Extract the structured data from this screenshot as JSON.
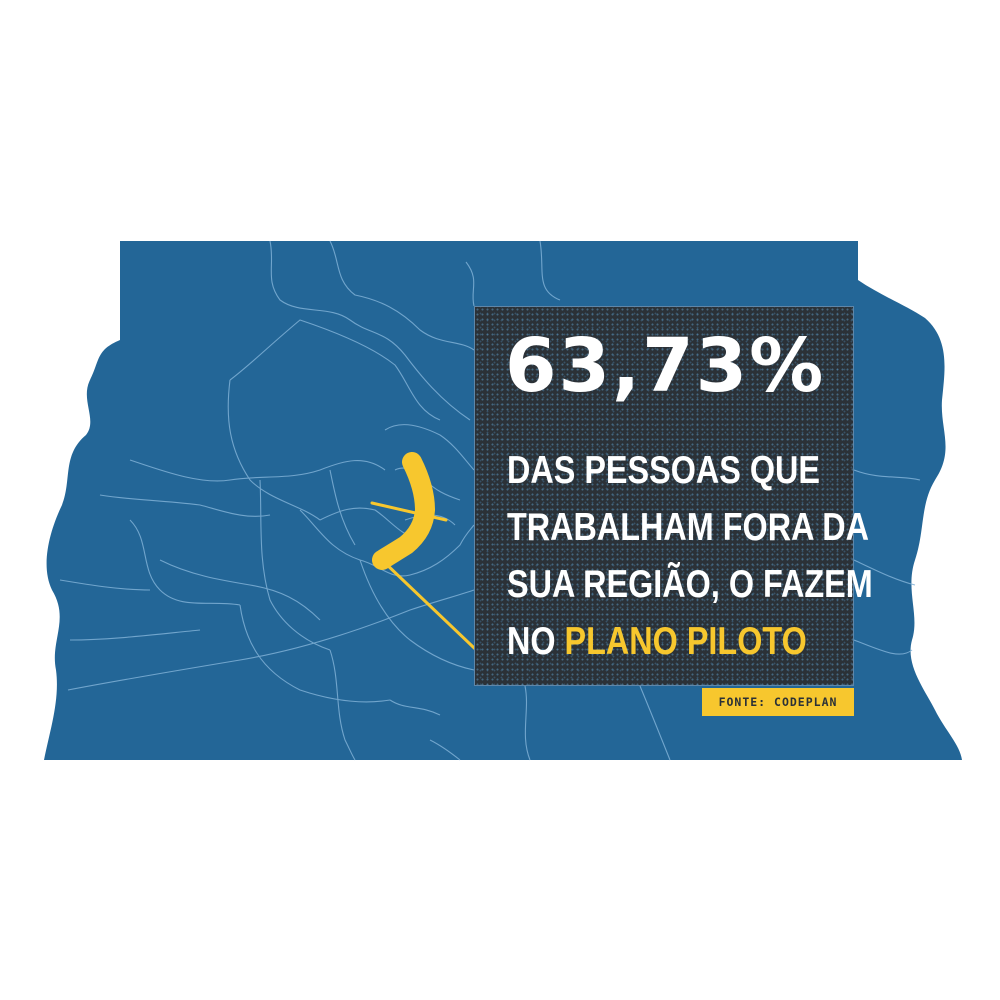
{
  "headline": {
    "value": "63,73%"
  },
  "description": {
    "line1": "DAS PESSOAS QUE",
    "line2": "TRABALHAM FORA DA",
    "line3": "SUA REGIÃO, O FAZEM",
    "line4_prefix": "NO ",
    "line4_highlight": "PLANO PILOTO"
  },
  "source": {
    "label": "FONTE: CODEPLAN"
  },
  "colors": {
    "map_fill": "#236697",
    "boundary_lines": "#7fb0d6",
    "panel_background": "#2b3137",
    "highlight": "#f7c72e",
    "text": "#ffffff"
  },
  "map": {
    "highlighted_region": "Plano Piloto"
  }
}
